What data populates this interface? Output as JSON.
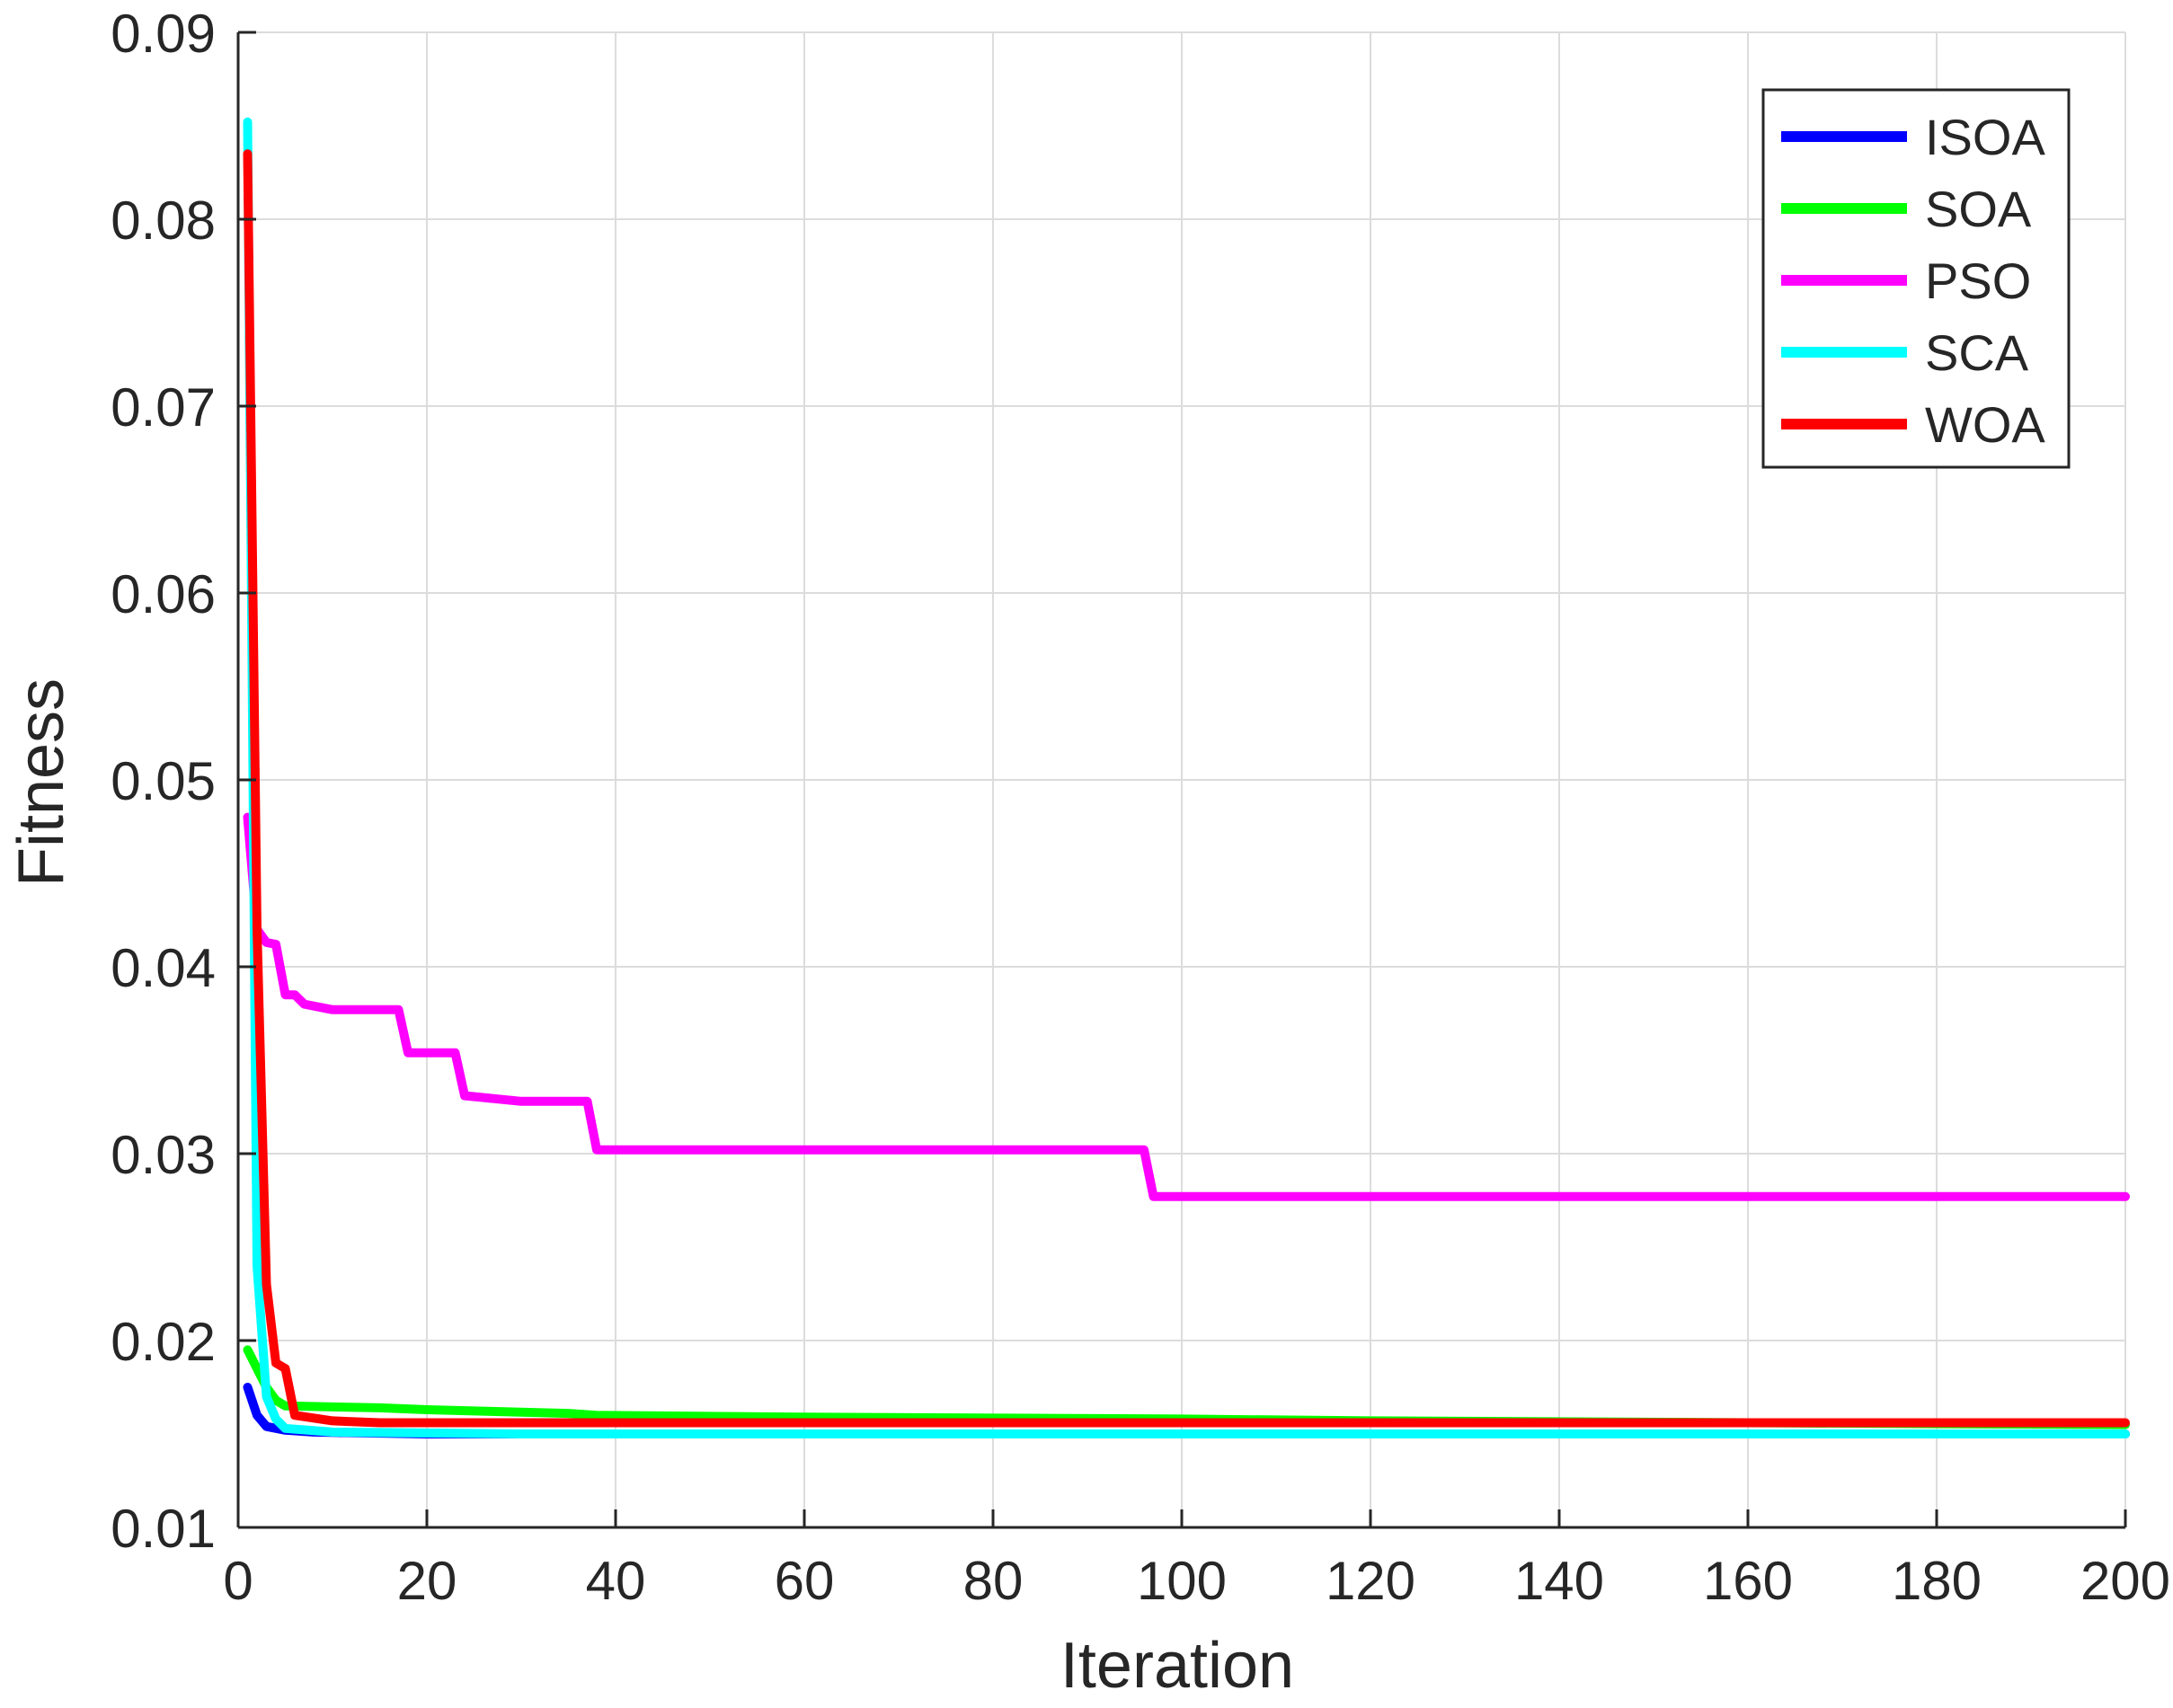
{
  "chart_data": {
    "type": "line",
    "title": "",
    "xlabel": "Iteration",
    "ylabel": "Fitness",
    "xlim": [
      0,
      200
    ],
    "ylim": [
      0.01,
      0.09
    ],
    "xticks": [
      0,
      20,
      40,
      60,
      80,
      100,
      120,
      140,
      160,
      180,
      200
    ],
    "xtick_labels": [
      "0",
      "20",
      "40",
      "60",
      "80",
      "100",
      "120",
      "140",
      "160",
      "180",
      "200"
    ],
    "yticks": [
      0.01,
      0.02,
      0.03,
      0.04,
      0.05,
      0.06,
      0.07,
      0.08,
      0.09
    ],
    "ytick_labels": [
      "0.01",
      "0.02",
      "0.03",
      "0.04",
      "0.05",
      "0.06",
      "0.07",
      "0.08",
      "0.09"
    ],
    "grid": true,
    "legend_position": "top-right",
    "series": [
      {
        "name": "ISOA",
        "color": "#0000ff",
        "points": [
          [
            1,
            0.0175
          ],
          [
            2,
            0.016
          ],
          [
            3,
            0.0154
          ],
          [
            5,
            0.0152
          ],
          [
            8,
            0.0151
          ],
          [
            20,
            0.015
          ],
          [
            60,
            0.015
          ],
          [
            200,
            0.015
          ]
        ]
      },
      {
        "name": "SOA",
        "color": "#00ff00",
        "points": [
          [
            1,
            0.0195
          ],
          [
            2,
            0.0185
          ],
          [
            3,
            0.0175
          ],
          [
            4,
            0.0168
          ],
          [
            5,
            0.0165
          ],
          [
            15,
            0.0164
          ],
          [
            20,
            0.0163
          ],
          [
            35,
            0.0161
          ],
          [
            38,
            0.016
          ],
          [
            60,
            0.0159
          ],
          [
            100,
            0.0158
          ],
          [
            120,
            0.0157
          ],
          [
            160,
            0.0156
          ],
          [
            200,
            0.0155
          ]
        ]
      },
      {
        "name": "PSO",
        "color": "#ff00ff",
        "points": [
          [
            1,
            0.048
          ],
          [
            2,
            0.042
          ],
          [
            3,
            0.0413
          ],
          [
            4,
            0.0412
          ],
          [
            5,
            0.0385
          ],
          [
            6,
            0.0385
          ],
          [
            7,
            0.038
          ],
          [
            10,
            0.0377
          ],
          [
            17,
            0.0377
          ],
          [
            18,
            0.0354
          ],
          [
            23,
            0.0354
          ],
          [
            24,
            0.0331
          ],
          [
            30,
            0.0328
          ],
          [
            37,
            0.0328
          ],
          [
            38,
            0.0302
          ],
          [
            60,
            0.0302
          ],
          [
            96,
            0.0302
          ],
          [
            97,
            0.0277
          ],
          [
            200,
            0.0277
          ]
        ]
      },
      {
        "name": "SCA",
        "color": "#00ffff",
        "points": [
          [
            1,
            0.0852
          ],
          [
            2,
            0.024
          ],
          [
            3,
            0.017
          ],
          [
            4,
            0.0158
          ],
          [
            5,
            0.0153
          ],
          [
            10,
            0.0151
          ],
          [
            30,
            0.015
          ],
          [
            100,
            0.015
          ],
          [
            200,
            0.015
          ]
        ]
      },
      {
        "name": "WOA",
        "color": "#ff0000",
        "points": [
          [
            1,
            0.0835
          ],
          [
            2,
            0.042
          ],
          [
            3,
            0.023
          ],
          [
            4,
            0.0188
          ],
          [
            5,
            0.0185
          ],
          [
            6,
            0.016
          ],
          [
            10,
            0.0157
          ],
          [
            15,
            0.0156
          ],
          [
            200,
            0.0156
          ]
        ]
      }
    ]
  }
}
